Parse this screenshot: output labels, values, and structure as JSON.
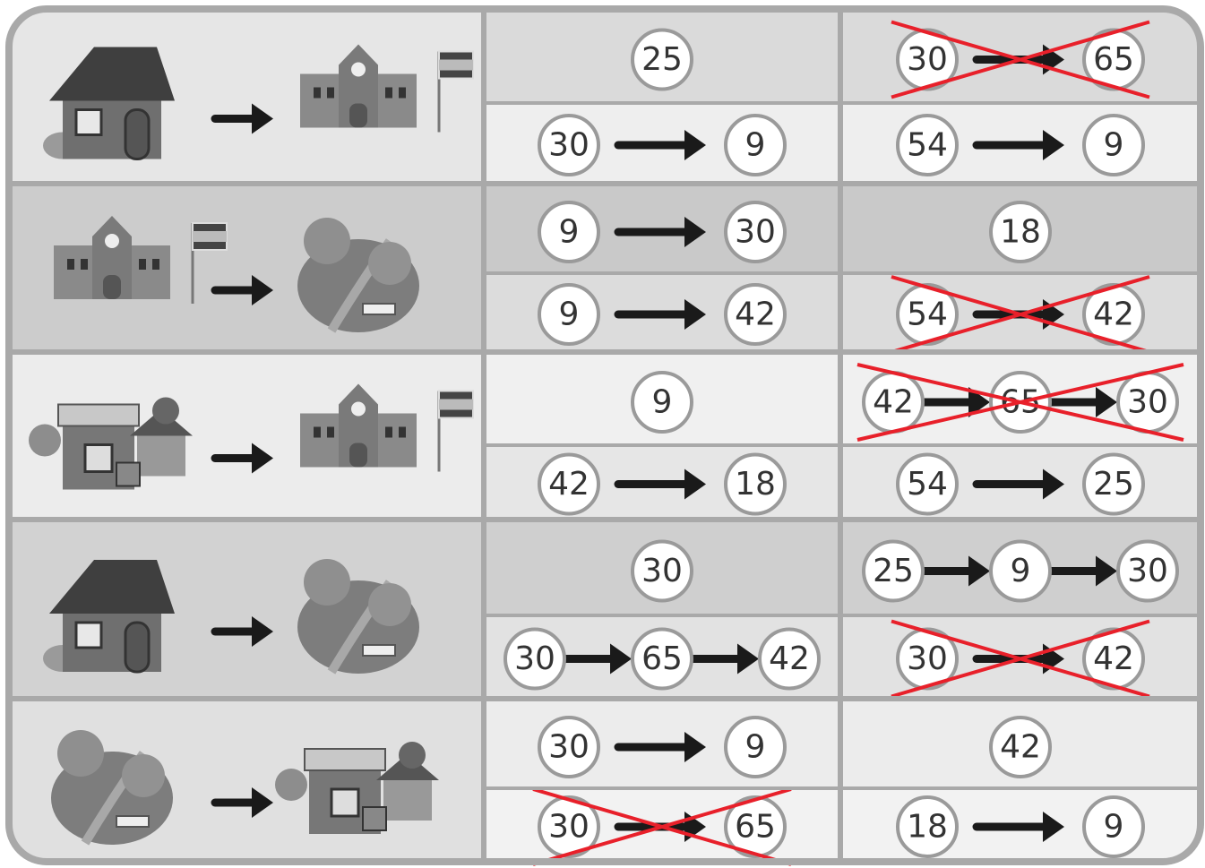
{
  "table": {
    "rows": [
      {
        "left": [
          {
            "stops": [
              25
            ]
          },
          {
            "stops": [
              30,
              9
            ]
          }
        ],
        "right": [
          {
            "stops": [
              30,
              65
            ],
            "crossed_out": true
          },
          {
            "stops": [
              54,
              9
            ]
          }
        ]
      },
      {
        "left": [
          {
            "stops": [
              9,
              30
            ]
          },
          {
            "stops": [
              9,
              42
            ]
          }
        ],
        "right": [
          {
            "stops": [
              18
            ]
          },
          {
            "stops": [
              54,
              42
            ],
            "crossed_out": true
          }
        ]
      },
      {
        "left": [
          {
            "stops": [
              9
            ]
          },
          {
            "stops": [
              42,
              18
            ]
          }
        ],
        "right": [
          {
            "stops": [
              42,
              65,
              30
            ],
            "crossed_out": true
          },
          {
            "stops": [
              54,
              25
            ]
          }
        ]
      },
      {
        "left": [
          {
            "stops": [
              30
            ]
          },
          {
            "stops": [
              30,
              65,
              42
            ]
          }
        ],
        "right": [
          {
            "stops": [
              25,
              9,
              30
            ]
          },
          {
            "stops": [
              30,
              42
            ],
            "crossed_out": true
          }
        ]
      },
      {
        "left": [
          {
            "stops": [
              30,
              9
            ]
          },
          {
            "stops": [
              30,
              65
            ],
            "crossed_out": true
          }
        ],
        "right": [
          {
            "stops": [
              42
            ]
          },
          {
            "stops": [
              18,
              9
            ]
          }
        ]
      }
    ]
  }
}
